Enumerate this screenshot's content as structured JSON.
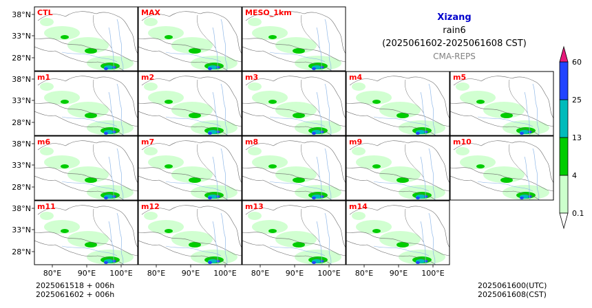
{
  "header": {
    "region": "Xizang",
    "variable": "rain6",
    "period": "(2025061602-2025061608 CST)",
    "model": "CMA-REPS"
  },
  "panels": [
    {
      "row": 0,
      "col": 0,
      "label": "CTL"
    },
    {
      "row": 0,
      "col": 1,
      "label": "MAX"
    },
    {
      "row": 0,
      "col": 2,
      "label": "MESO_1km"
    },
    {
      "row": 1,
      "col": 0,
      "label": "m1"
    },
    {
      "row": 1,
      "col": 1,
      "label": "m2"
    },
    {
      "row": 1,
      "col": 2,
      "label": "m3"
    },
    {
      "row": 1,
      "col": 3,
      "label": "m4"
    },
    {
      "row": 1,
      "col": 4,
      "label": "m5"
    },
    {
      "row": 2,
      "col": 0,
      "label": "m6"
    },
    {
      "row": 2,
      "col": 1,
      "label": "m7"
    },
    {
      "row": 2,
      "col": 2,
      "label": "m8"
    },
    {
      "row": 2,
      "col": 3,
      "label": "m9"
    },
    {
      "row": 2,
      "col": 4,
      "label": "m10"
    },
    {
      "row": 3,
      "col": 0,
      "label": "m11"
    },
    {
      "row": 3,
      "col": 1,
      "label": "m12"
    },
    {
      "row": 3,
      "col": 2,
      "label": "m13"
    },
    {
      "row": 3,
      "col": 3,
      "label": "m14"
    }
  ],
  "lat_labels": [
    "38°N",
    "33°N",
    "28°N"
  ],
  "lon_labels": [
    "80°E",
    "90°E",
    "100°E"
  ],
  "colorbar": {
    "levels": [
      "0.1",
      "4",
      "13",
      "25",
      "60"
    ],
    "colors": [
      "#ccffcc",
      "#00cc00",
      "#00bbbb",
      "#2244ff",
      "#e6197a"
    ]
  },
  "footer": {
    "left_line1": "2025061518  +  006h",
    "left_line2": "2025061602  +  006h",
    "right_line1": "2025061600(UTC)",
    "right_line2": "2025061608(CST)"
  },
  "colors": {
    "panel_label": "#ff0000",
    "region_title": "#0000cc",
    "model_label": "#808080",
    "border": "#666666",
    "river": "#8fb8e8",
    "light_rain": "#ccffcc",
    "moderate_rain": "#00cc00",
    "heavy_rain": "#00bbbb",
    "very_heavy_rain": "#2244ff"
  }
}
